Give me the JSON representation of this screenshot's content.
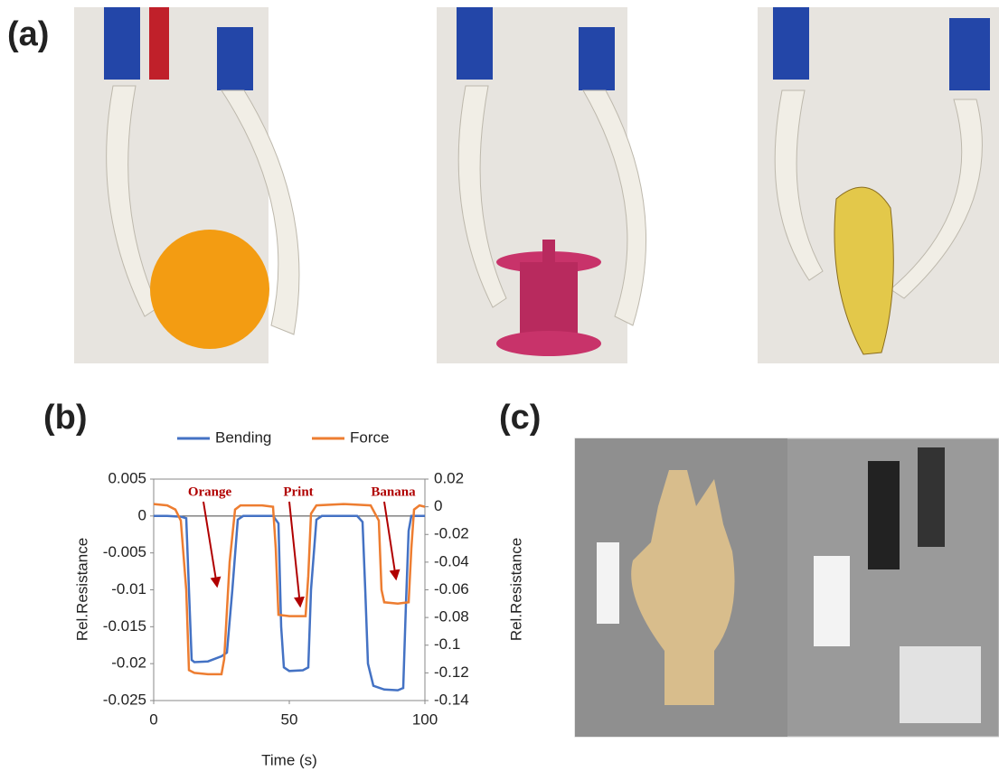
{
  "labels": [
    "(a)",
    "(b)",
    "(c)"
  ],
  "chart_data": {
    "type": "line",
    "xlabel": "Time (s)",
    "ylabel": "Rel.Resistance",
    "y2label": "Rel.Resistance",
    "xlim": [
      0,
      100
    ],
    "xticks": [
      0,
      50,
      100
    ],
    "ylim": [
      -0.025,
      0.005
    ],
    "yticks": [
      0.005,
      0,
      -0.005,
      -0.01,
      -0.015,
      -0.02,
      -0.025
    ],
    "y2lim": [
      -0.14,
      0.02
    ],
    "y2ticks": [
      0.02,
      0,
      -0.02,
      -0.04,
      -0.06,
      -0.08,
      -0.1,
      -0.12,
      -0.14
    ],
    "legend": "top",
    "annotations": [
      "Orange",
      "Print",
      "Banana"
    ],
    "series": [
      {
        "name": "Bending",
        "color": "#4472c4",
        "x": [
          0,
          5,
          10,
          12,
          13,
          14,
          15,
          20,
          25,
          27,
          29,
          31,
          33,
          40,
          44,
          46,
          47,
          48,
          50,
          55,
          57,
          58,
          60,
          62,
          70,
          75,
          77,
          78,
          79,
          81,
          85,
          90,
          92,
          93,
          94,
          95,
          100
        ],
        "values": [
          0,
          0,
          -0.0001,
          -0.0003,
          -0.01,
          -0.0195,
          -0.0198,
          -0.0197,
          -0.019,
          -0.0185,
          -0.01,
          -0.0005,
          0,
          0,
          0,
          -0.001,
          -0.015,
          -0.0205,
          -0.021,
          -0.0209,
          -0.0205,
          -0.01,
          -0.0005,
          0,
          0,
          0,
          -0.0008,
          -0.01,
          -0.02,
          -0.023,
          -0.0235,
          -0.0236,
          -0.0233,
          -0.012,
          -0.002,
          0,
          0
        ]
      },
      {
        "name": "Force",
        "color": "#ed7d31",
        "axis": "y2",
        "x": [
          0,
          5,
          8,
          10,
          12,
          13,
          15,
          20,
          25,
          26,
          28,
          30,
          32,
          40,
          44,
          45,
          46,
          50,
          56,
          57,
          58,
          60,
          70,
          80,
          83,
          84,
          85,
          90,
          94,
          95,
          96,
          98,
          100
        ],
        "values": [
          0.002,
          0.001,
          -0.002,
          -0.01,
          -0.06,
          -0.118,
          -0.12,
          -0.121,
          -0.121,
          -0.11,
          -0.04,
          -0.002,
          0.001,
          0.001,
          0,
          -0.03,
          -0.078,
          -0.079,
          -0.079,
          -0.05,
          -0.005,
          0.001,
          0.002,
          0.001,
          -0.01,
          -0.06,
          -0.069,
          -0.07,
          -0.069,
          -0.03,
          -0.002,
          0.001,
          0
        ]
      }
    ]
  }
}
